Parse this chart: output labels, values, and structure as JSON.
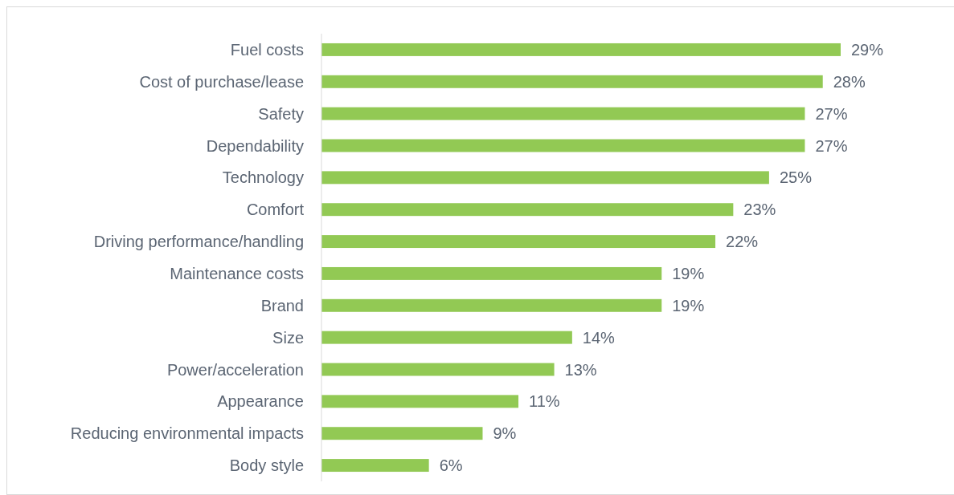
{
  "chart_data": {
    "type": "bar",
    "orientation": "horizontal",
    "color": "#92c954",
    "categories": [
      "Fuel costs",
      "Cost of purchase/lease",
      "Safety",
      "Dependability",
      "Technology",
      "Comfort",
      "Driving performance/handling",
      "Maintenance costs",
      "Brand",
      "Size",
      "Power/acceleration",
      "Appearance",
      "Reducing environmental impacts",
      "Body style"
    ],
    "values": [
      29,
      28,
      27,
      27,
      25,
      23,
      22,
      19,
      19,
      14,
      13,
      11,
      9,
      6
    ],
    "value_labels": [
      "29%",
      "28%",
      "27%",
      "27%",
      "25%",
      "23%",
      "22%",
      "19%",
      "19%",
      "14%",
      "13%",
      "11%",
      "9%",
      "6%"
    ]
  }
}
